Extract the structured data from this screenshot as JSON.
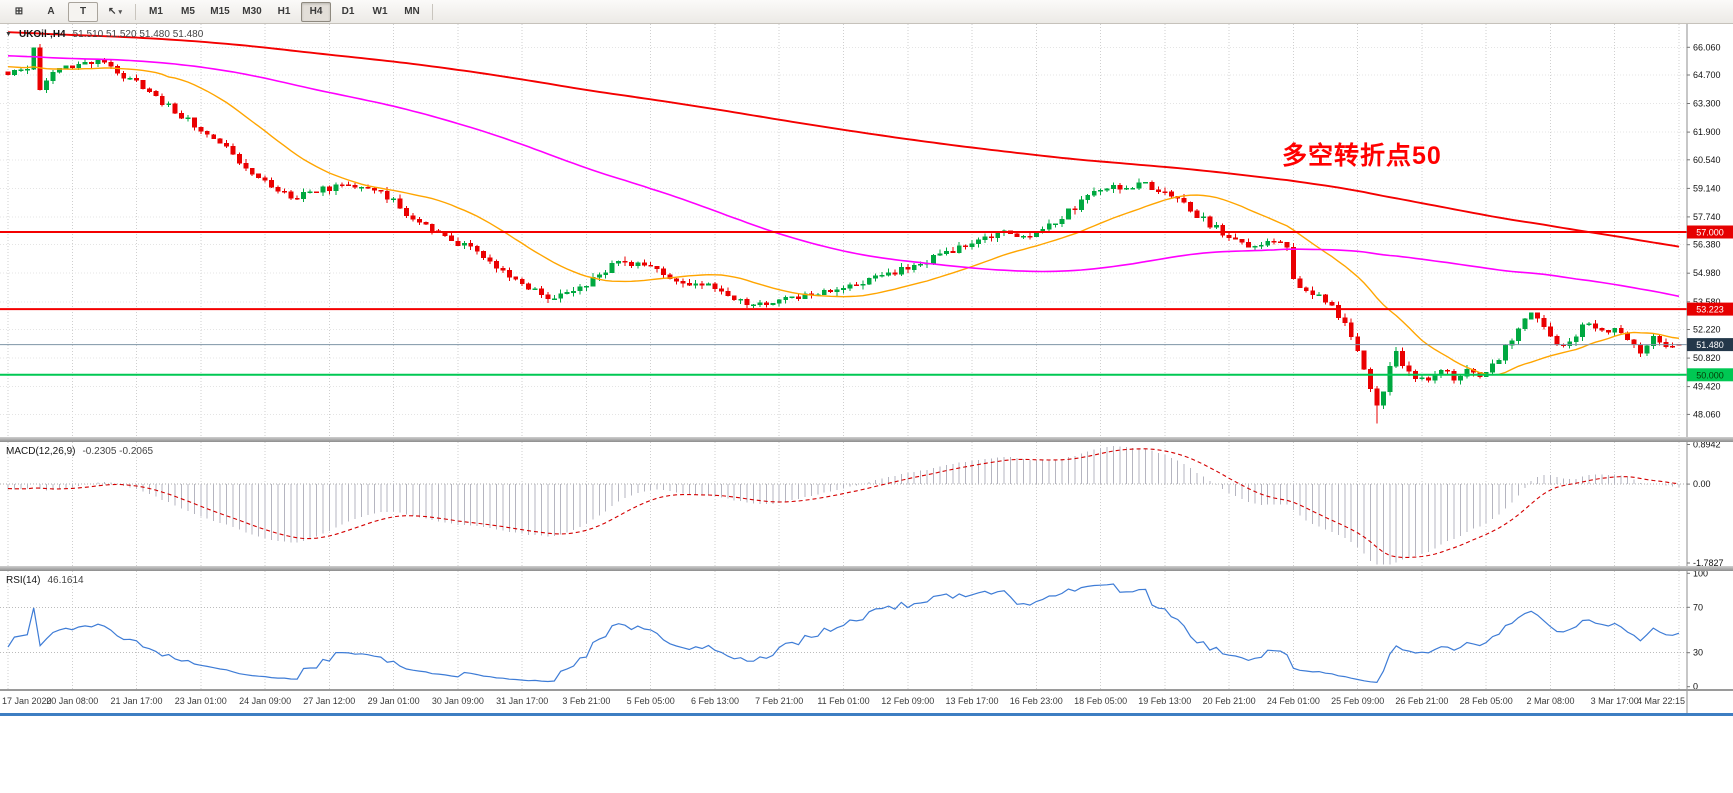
{
  "toolbar": {
    "icon_buttons": [
      {
        "name": "chart-grid",
        "glyph": "⊞"
      },
      {
        "name": "annotation-a",
        "glyph": "A"
      },
      {
        "name": "text-tool",
        "glyph": "T"
      },
      {
        "name": "cursor-tool",
        "glyph": "↖",
        "caret": "▾"
      }
    ],
    "timeframes": [
      "M1",
      "M5",
      "M15",
      "M30",
      "H1",
      "H4",
      "D1",
      "W1",
      "MN"
    ],
    "active_timeframe": "H4"
  },
  "chart_header": {
    "collapse_icon": "▼",
    "symbol": "UKOil-,H4",
    "ohlc": "51.510 51.520 51.480 51.480"
  },
  "annotation": {
    "text": "多空转折点50",
    "color": "#FF0000"
  },
  "chart_data": {
    "type": "candlestick",
    "symbol": "UKOil-",
    "timeframe": "H4",
    "current_candle": {
      "open": 51.51,
      "high": 51.52,
      "low": 51.48,
      "close": 51.48
    },
    "candle_count": 261,
    "bull_color": "#00A840",
    "bear_color": "#EA0001",
    "grid_color": "#CFCFCF",
    "price_ticks": [
      "66.060",
      "64.700",
      "63.300",
      "61.900",
      "60.540",
      "59.140",
      "57.740",
      "56.380",
      "54.980",
      "53.580",
      "52.220",
      "50.820",
      "49.420",
      "48.060"
    ],
    "time_labels": [
      "17 Jan 2020",
      "20 Jan 08:00",
      "21 Jan 17:00",
      "23 Jan 01:00",
      "24 Jan 09:00",
      "27 Jan 12:00",
      "29 Jan 01:00",
      "30 Jan 09:00",
      "31 Jan 17:00",
      "3 Feb 21:00",
      "5 Feb 05:00",
      "6 Feb 13:00",
      "7 Feb 21:00",
      "11 Feb 01:00",
      "12 Feb 09:00",
      "13 Feb 17:00",
      "16 Feb 23:00",
      "18 Feb 05:00",
      "19 Feb 13:00",
      "20 Feb 21:00",
      "24 Feb 01:00",
      "25 Feb 09:00",
      "26 Feb 21:00",
      "28 Feb 05:00",
      "2 Mar 08:00",
      "3 Mar 17:00",
      "4 Mar 22:15"
    ],
    "trend_anchors": [
      [
        0,
        64.8
      ],
      [
        2,
        65.1
      ],
      [
        3,
        65.0
      ],
      [
        4,
        65.9
      ],
      [
        5,
        64.1
      ],
      [
        7,
        64.8
      ],
      [
        10,
        65.15
      ],
      [
        14,
        65.35
      ],
      [
        17,
        64.9
      ],
      [
        20,
        64.3
      ],
      [
        24,
        63.4
      ],
      [
        27,
        62.7
      ],
      [
        30,
        62.1
      ],
      [
        33,
        61.4
      ],
      [
        36,
        60.4
      ],
      [
        40,
        59.4
      ],
      [
        44,
        58.7
      ],
      [
        47,
        59.0
      ],
      [
        50,
        59.1
      ],
      [
        54,
        59.35
      ],
      [
        57,
        59.0
      ],
      [
        60,
        58.6
      ],
      [
        63,
        57.6
      ],
      [
        66,
        57.1
      ],
      [
        70,
        56.5
      ],
      [
        73,
        56.2
      ],
      [
        76,
        55.3
      ],
      [
        80,
        54.3
      ],
      [
        84,
        53.8
      ],
      [
        87,
        54.1
      ],
      [
        90,
        54.5
      ],
      [
        94,
        55.35
      ],
      [
        97,
        55.5
      ],
      [
        100,
        55.2
      ],
      [
        104,
        54.7
      ],
      [
        107,
        54.5
      ],
      [
        110,
        54.25
      ],
      [
        113,
        53.8
      ],
      [
        116,
        53.45
      ],
      [
        118,
        53.3
      ],
      [
        121,
        53.7
      ],
      [
        124,
        53.95
      ],
      [
        127,
        54.1
      ],
      [
        130,
        54.2
      ],
      [
        134,
        54.7
      ],
      [
        137,
        54.95
      ],
      [
        140,
        55.2
      ],
      [
        144,
        55.7
      ],
      [
        147,
        56.1
      ],
      [
        150,
        56.5
      ],
      [
        153,
        56.85
      ],
      [
        156,
        57.0
      ],
      [
        158,
        56.8
      ],
      [
        160,
        57.05
      ],
      [
        163,
        57.5
      ],
      [
        166,
        58.2
      ],
      [
        169,
        58.9
      ],
      [
        171,
        59.25
      ],
      [
        173,
        59.05
      ],
      [
        175,
        59.2
      ],
      [
        177,
        59.4
      ],
      [
        179,
        59.0
      ],
      [
        181,
        58.75
      ],
      [
        184,
        58.1
      ],
      [
        187,
        57.4
      ],
      [
        190,
        56.8
      ],
      [
        193,
        56.3
      ],
      [
        196,
        56.55
      ],
      [
        199,
        56.3
      ],
      [
        200,
        54.7
      ],
      [
        202,
        54.2
      ],
      [
        205,
        53.6
      ],
      [
        208,
        52.5
      ],
      [
        210,
        51.1
      ],
      [
        212,
        49.4
      ],
      [
        213,
        48.5
      ],
      [
        214,
        49.2
      ],
      [
        215,
        50.3
      ],
      [
        216,
        51.0
      ],
      [
        217,
        50.5
      ],
      [
        219,
        49.8
      ],
      [
        221,
        49.9
      ],
      [
        223,
        50.3
      ],
      [
        225,
        49.9
      ],
      [
        227,
        50.2
      ],
      [
        229,
        50.0
      ],
      [
        231,
        50.4
      ],
      [
        233,
        51.3
      ],
      [
        235,
        52.3
      ],
      [
        237,
        53.2
      ],
      [
        238,
        52.9
      ],
      [
        240,
        51.9
      ],
      [
        242,
        51.3
      ],
      [
        244,
        52.0
      ],
      [
        246,
        52.6
      ],
      [
        248,
        52.1
      ],
      [
        250,
        52.2
      ],
      [
        252,
        51.6
      ],
      [
        254,
        51.2
      ],
      [
        256,
        51.8
      ],
      [
        258,
        51.5
      ],
      [
        260,
        51.49
      ]
    ],
    "forced_extremes": [
      {
        "index": 4,
        "high": 66.05
      },
      {
        "index": 5,
        "low": 63.95
      },
      {
        "index": 213,
        "low": 47.6
      }
    ],
    "horizontal_lines": [
      {
        "price": 57.0,
        "label": "57.000",
        "color": "#F40000",
        "width": 2,
        "badge_bg": "#E60000",
        "badge_fg": "#FFFFFF"
      },
      {
        "price": 53.223,
        "label": "53.223",
        "color": "#F40000",
        "width": 2,
        "badge_bg": "#E60000",
        "badge_fg": "#FFFFFF"
      },
      {
        "price": 51.48,
        "label": "51.480",
        "color": "#7E95A6",
        "width": 1,
        "badge_bg": "#24384A",
        "badge_fg": "#FFFFFF"
      },
      {
        "price": 50.0,
        "label": "50.000",
        "color": "#00C853",
        "width": 2,
        "badge_bg": "#00C853",
        "badge_fg": "#053B05"
      }
    ],
    "moving_averages": [
      {
        "name": "ma-fast-orange",
        "period": 21,
        "color": "#FFA500",
        "width": 1.4
      },
      {
        "name": "ma-mid-magenta",
        "period": 96,
        "color": "#FF00FF",
        "width": 1.6
      },
      {
        "name": "ma-slow-red",
        "period": 260,
        "color": "#F40000",
        "width": 1.9
      }
    ],
    "macd": {
      "label": "MACD(12,26,9)",
      "values": "-0.2305 -0.2065",
      "fast": 12,
      "slow": 26,
      "signal": 9,
      "scale": [
        "0.8942",
        "0.00",
        "-1.7827"
      ],
      "histogram_color": "#B5B5C0",
      "signal_color": "#D40000"
    },
    "rsi": {
      "label": "RSI(14)",
      "value": "46.1614",
      "period": 14,
      "scale": [
        "100",
        "70",
        "30",
        "0"
      ],
      "levels": [
        70,
        30
      ],
      "line_color": "#3E7CD6",
      "level_color": "#BBBBBB"
    }
  }
}
